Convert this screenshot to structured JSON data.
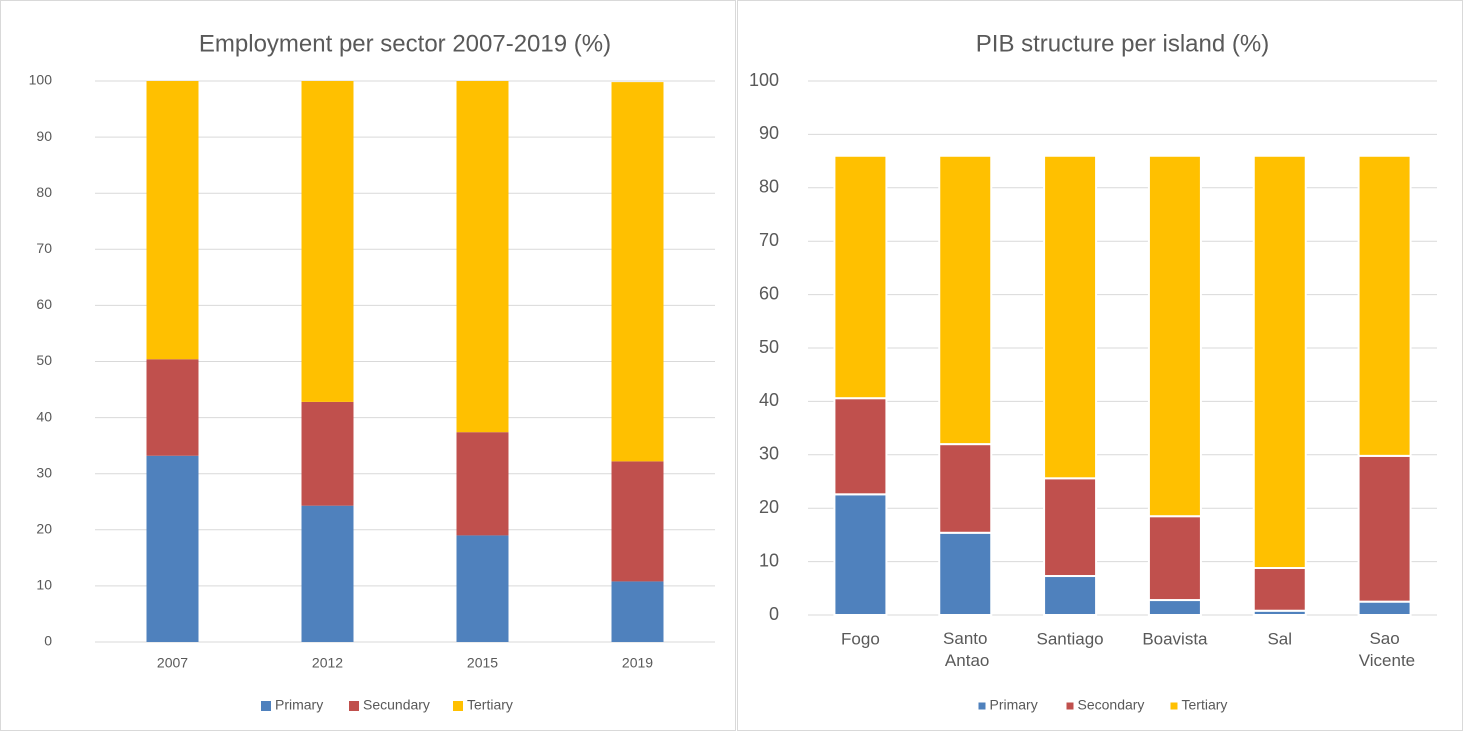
{
  "chart_data": [
    {
      "type": "bar",
      "stacked": true,
      "title": "Employment per sector 2007-2019 (%)",
      "categories": [
        "2007",
        "2012",
        "2015",
        "2019"
      ],
      "series": [
        {
          "name": "Primary",
          "color": "#4f81bd",
          "values": [
            33.2,
            24.3,
            19,
            10.8
          ]
        },
        {
          "name": "Secundary",
          "color": "#c0504d",
          "values": [
            17.2,
            18.5,
            18.4,
            21.4
          ]
        },
        {
          "name": "Tertiary",
          "color": "#ffc000",
          "values": [
            49.6,
            57.2,
            62.6,
            67.6
          ]
        }
      ],
      "ylim": [
        0,
        100
      ],
      "yticks": [
        0,
        10,
        20,
        30,
        40,
        50,
        60,
        70,
        80,
        90,
        100
      ],
      "grid": true,
      "legend": "bottom"
    },
    {
      "type": "bar",
      "stacked": true,
      "title": "PIB structure per island (%)",
      "categories": [
        "Fogo",
        "Santo Antao",
        "Santiago",
        "Boavista",
        "Sal",
        "Sao Vicente"
      ],
      "series": [
        {
          "name": "Primary",
          "color": "#4f81bd",
          "values": [
            22.6,
            15.4,
            7.3,
            2.8,
            0.8,
            2.5
          ]
        },
        {
          "name": "Secondary",
          "color": "#c0504d",
          "values": [
            18,
            16.6,
            18.3,
            15.7,
            8,
            27.3
          ]
        },
        {
          "name": "Tertiary",
          "color": "#ffc000",
          "values": [
            45.4,
            54,
            60.4,
            67.5,
            77.2,
            56.2
          ]
        }
      ],
      "ylim": [
        0,
        100
      ],
      "yticks": [
        0,
        10,
        20,
        30,
        40,
        50,
        60,
        70,
        80,
        90,
        100
      ],
      "grid": true,
      "legend": "bottom"
    }
  ]
}
